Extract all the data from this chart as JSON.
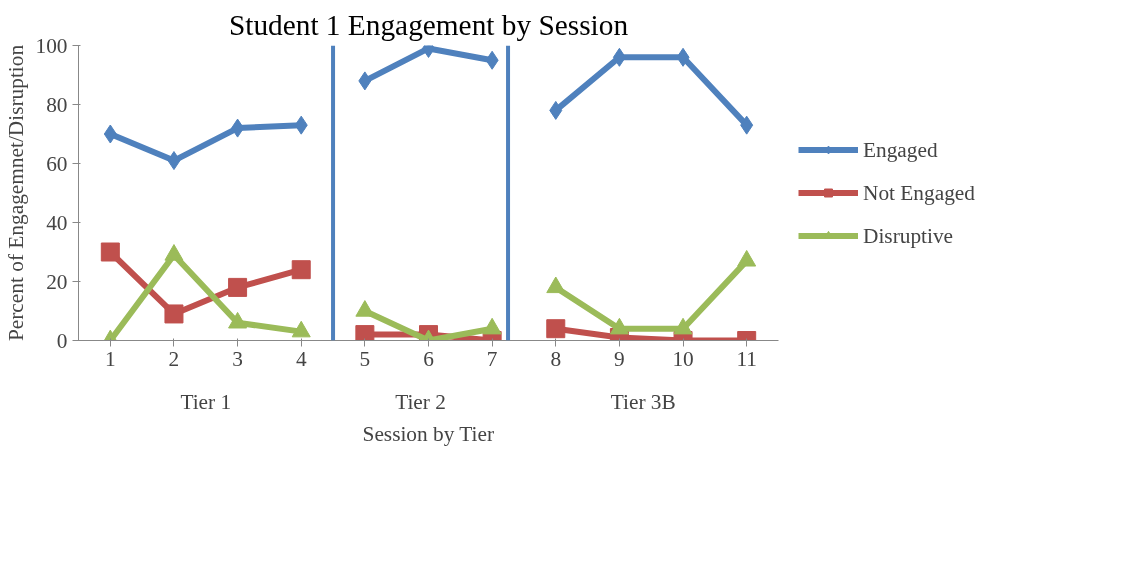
{
  "chart_data": {
    "type": "line",
    "title": "Student 1 Engagement by Session",
    "xlabel": "Session by Tier",
    "ylabel": "Percent of Engagemnet/Disruption",
    "x": [
      1,
      2,
      3,
      4,
      5,
      6,
      7,
      8,
      9,
      10,
      11
    ],
    "xlim": [
      0.5,
      11.5
    ],
    "xticks": [
      1,
      2,
      3,
      4,
      5,
      6,
      7,
      8,
      9,
      10,
      11
    ],
    "ylim": [
      0,
      100
    ],
    "yticks": [
      0,
      20,
      40,
      60,
      80,
      100
    ],
    "series": [
      {
        "name": "Engaged",
        "color": "#4f81bd",
        "marker": "diamond",
        "values": [
          70,
          61,
          72,
          73,
          88,
          99,
          95,
          78,
          96,
          96,
          73
        ]
      },
      {
        "name": "Not Engaged",
        "color": "#c0504d",
        "marker": "square",
        "values": [
          30,
          9,
          18,
          24,
          2,
          2,
          0,
          4,
          1,
          0,
          0
        ]
      },
      {
        "name": "Disruptive",
        "color": "#9bbb59",
        "marker": "triangle",
        "values": [
          0,
          29,
          6,
          3,
          10,
          0,
          4,
          18,
          4,
          4,
          27
        ]
      }
    ],
    "ref_lines": [
      {
        "axis": "x",
        "value": 4.5,
        "color": "#4f81bd"
      },
      {
        "axis": "x",
        "value": 7.25,
        "color": "#4f81bd"
      }
    ],
    "annotations": [
      "Tier 1",
      "Tier 2",
      "Tier 3B"
    ],
    "grid": false,
    "legend": "right",
    "line_style": "solid"
  }
}
